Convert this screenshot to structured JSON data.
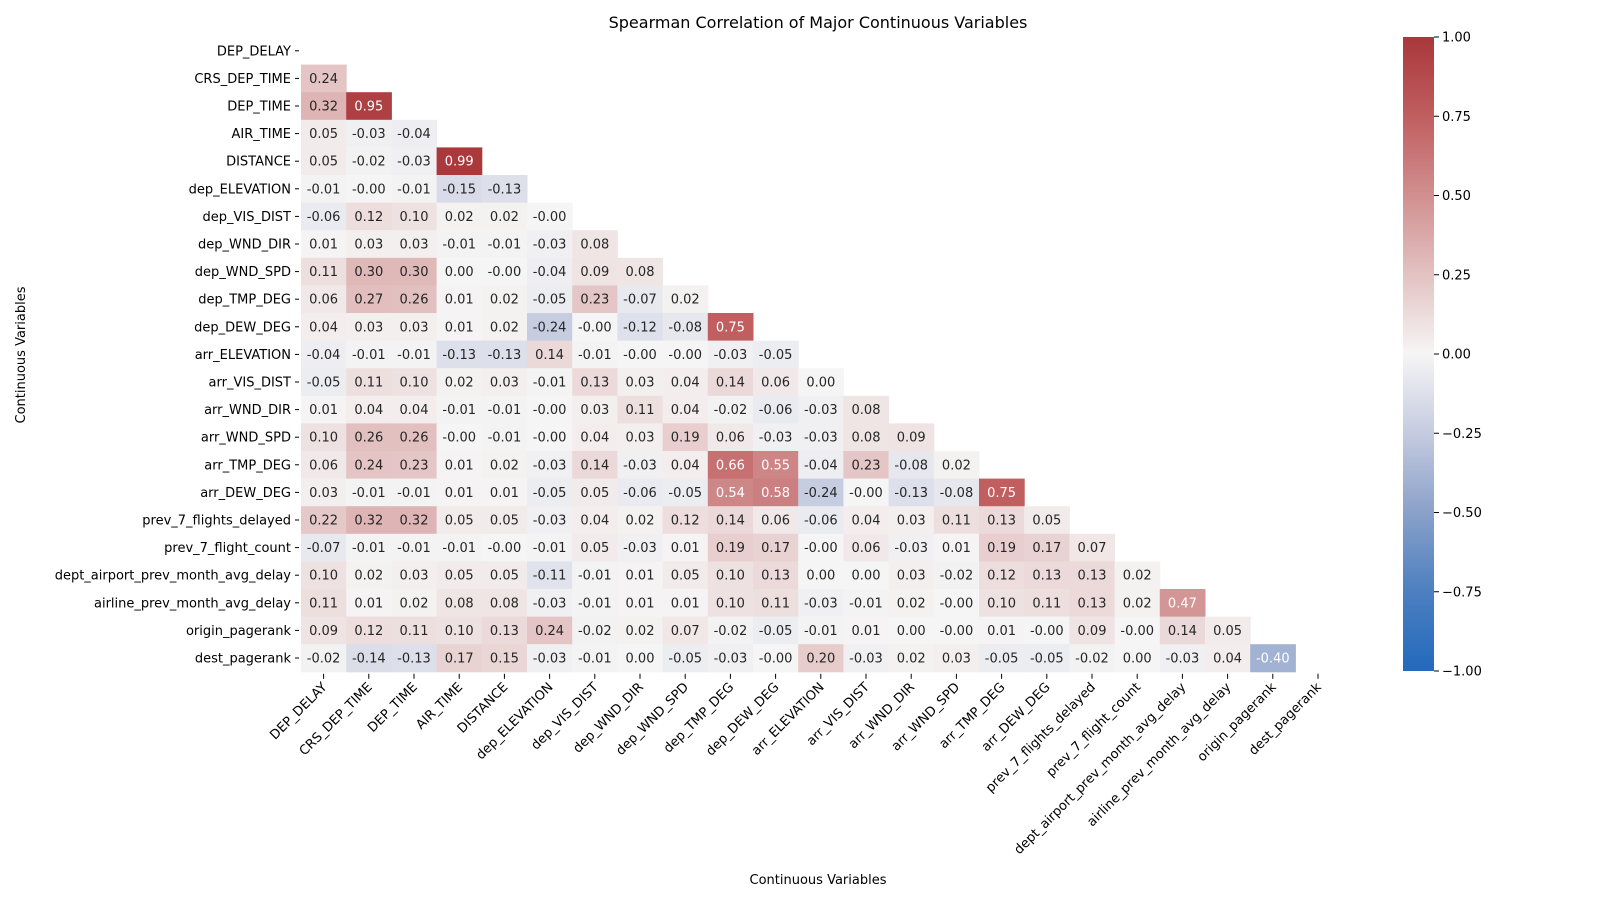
{
  "chart_data": {
    "type": "heatmap",
    "title": "Spearman Correlation of Major Continuous Variables",
    "xlabel": "Continuous Variables",
    "ylabel": "Continuous Variables",
    "variables": [
      "DEP_DELAY",
      "CRS_DEP_TIME",
      "DEP_TIME",
      "AIR_TIME",
      "DISTANCE",
      "dep_ELEVATION",
      "dep_VIS_DIST",
      "dep_WND_DIR",
      "dep_WND_SPD",
      "dep_TMP_DEG",
      "dep_DEW_DEG",
      "arr_ELEVATION",
      "arr_VIS_DIST",
      "arr_WND_DIR",
      "arr_WND_SPD",
      "arr_TMP_DEG",
      "arr_DEW_DEG",
      "prev_7_flights_delayed",
      "prev_7_flight_count",
      "dept_airport_prev_month_avg_delay",
      "airline_prev_month_avg_delay",
      "origin_pagerank",
      "dest_pagerank"
    ],
    "mask": "upper-triangle-including-diagonal",
    "value_format": "2 decimals",
    "lower_triangle": [
      [],
      [
        "0.24"
      ],
      [
        "0.32",
        "0.95"
      ],
      [
        "0.05",
        "-0.03",
        "-0.04"
      ],
      [
        "0.05",
        "-0.02",
        "-0.03",
        "0.99"
      ],
      [
        "-0.01",
        "-0.00",
        "-0.01",
        "-0.15",
        "-0.13"
      ],
      [
        "-0.06",
        "0.12",
        "0.10",
        "0.02",
        "0.02",
        "-0.00"
      ],
      [
        "0.01",
        "0.03",
        "0.03",
        "-0.01",
        "-0.01",
        "-0.03",
        "0.08"
      ],
      [
        "0.11",
        "0.30",
        "0.30",
        "0.00",
        "-0.00",
        "-0.04",
        "0.09",
        "0.08"
      ],
      [
        "0.06",
        "0.27",
        "0.26",
        "0.01",
        "0.02",
        "-0.05",
        "0.23",
        "-0.07",
        "0.02"
      ],
      [
        "0.04",
        "0.03",
        "0.03",
        "0.01",
        "0.02",
        "-0.24",
        "-0.00",
        "-0.12",
        "-0.08",
        "0.75"
      ],
      [
        "-0.04",
        "-0.01",
        "-0.01",
        "-0.13",
        "-0.13",
        "0.14",
        "-0.01",
        "-0.00",
        "-0.00",
        "-0.03",
        "-0.05"
      ],
      [
        "-0.05",
        "0.11",
        "0.10",
        "0.02",
        "0.03",
        "-0.01",
        "0.13",
        "0.03",
        "0.04",
        "0.14",
        "0.06",
        "0.00"
      ],
      [
        "0.01",
        "0.04",
        "0.04",
        "-0.01",
        "-0.01",
        "-0.00",
        "0.03",
        "0.11",
        "0.04",
        "-0.02",
        "-0.06",
        "-0.03",
        "0.08"
      ],
      [
        "0.10",
        "0.26",
        "0.26",
        "-0.00",
        "-0.01",
        "-0.00",
        "0.04",
        "0.03",
        "0.19",
        "0.06",
        "-0.03",
        "-0.03",
        "0.08",
        "0.09"
      ],
      [
        "0.06",
        "0.24",
        "0.23",
        "0.01",
        "0.02",
        "-0.03",
        "0.14",
        "-0.03",
        "0.04",
        "0.66",
        "0.55",
        "-0.04",
        "0.23",
        "-0.08",
        "0.02"
      ],
      [
        "0.03",
        "-0.01",
        "-0.01",
        "0.01",
        "0.01",
        "-0.05",
        "0.05",
        "-0.06",
        "-0.05",
        "0.54",
        "0.58",
        "-0.24",
        "-0.00",
        "-0.13",
        "-0.08",
        "0.75"
      ],
      [
        "0.22",
        "0.32",
        "0.32",
        "0.05",
        "0.05",
        "-0.03",
        "0.04",
        "0.02",
        "0.12",
        "0.14",
        "0.06",
        "-0.06",
        "0.04",
        "0.03",
        "0.11",
        "0.13",
        "0.05"
      ],
      [
        "-0.07",
        "-0.01",
        "-0.01",
        "-0.01",
        "-0.00",
        "-0.01",
        "0.05",
        "-0.03",
        "0.01",
        "0.19",
        "0.17",
        "-0.00",
        "0.06",
        "-0.03",
        "0.01",
        "0.19",
        "0.17",
        "0.07"
      ],
      [
        "0.10",
        "0.02",
        "0.03",
        "0.05",
        "0.05",
        "-0.11",
        "-0.01",
        "0.01",
        "0.05",
        "0.10",
        "0.13",
        "0.00",
        "0.00",
        "0.03",
        "-0.02",
        "0.12",
        "0.13",
        "0.13",
        "0.02"
      ],
      [
        "0.11",
        "0.01",
        "0.02",
        "0.08",
        "0.08",
        "-0.03",
        "-0.01",
        "0.01",
        "0.01",
        "0.10",
        "0.11",
        "-0.03",
        "-0.01",
        "0.02",
        "-0.00",
        "0.10",
        "0.11",
        "0.13",
        "0.02",
        "0.47"
      ],
      [
        "0.09",
        "0.12",
        "0.11",
        "0.10",
        "0.13",
        "0.24",
        "-0.02",
        "0.02",
        "0.07",
        "-0.02",
        "-0.05",
        "-0.01",
        "0.01",
        "0.00",
        "-0.00",
        "0.01",
        "-0.00",
        "0.09",
        "-0.00",
        "0.14",
        "0.05"
      ],
      [
        "-0.02",
        "-0.14",
        "-0.13",
        "0.17",
        "0.15",
        "-0.03",
        "-0.01",
        "0.00",
        "-0.05",
        "-0.03",
        "-0.00",
        "0.20",
        "-0.03",
        "0.02",
        "0.03",
        "-0.05",
        "-0.05",
        "-0.02",
        "0.00",
        "-0.03",
        "0.04",
        "-0.40"
      ]
    ],
    "colorbar": {
      "colormap": "vlag",
      "vmin": -1.0,
      "vmax": 1.0,
      "ticks": [
        "-1.00",
        "-0.75",
        "-0.50",
        "-0.25",
        "0.00",
        "0.25",
        "0.50",
        "0.75",
        "1.00"
      ],
      "stops": [
        {
          "v": -1.0,
          "color": "#2369bd"
        },
        {
          "v": -0.75,
          "color": "#4c7fc0"
        },
        {
          "v": -0.5,
          "color": "#8aa1c9"
        },
        {
          "v": -0.25,
          "color": "#c5cbe0"
        },
        {
          "v": 0.0,
          "color": "#f6f5f5"
        },
        {
          "v": 0.25,
          "color": "#e3c2c2"
        },
        {
          "v": 0.5,
          "color": "#d18f8f"
        },
        {
          "v": 0.75,
          "color": "#c05e60"
        },
        {
          "v": 1.0,
          "color": "#a9373b"
        }
      ]
    },
    "grid": false,
    "legend": "colorbar at right"
  }
}
